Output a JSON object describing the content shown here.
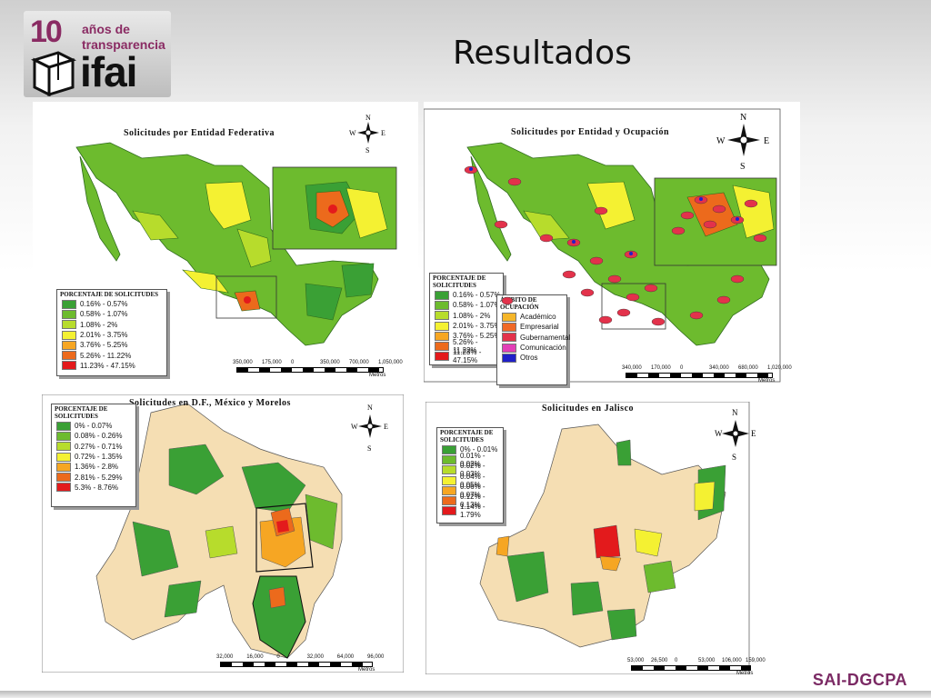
{
  "slide": {
    "title": "Resultados",
    "footer": "SAI-DGCPA"
  },
  "logo": {
    "number": "10",
    "line1": "años de",
    "line2": "transparencia",
    "brand": "ifai"
  },
  "compass": {
    "n": "N",
    "s": "S",
    "e": "E",
    "w": "W"
  },
  "maps": [
    {
      "title": "Solicitudes por Entidad Federativa",
      "legend_title": "Porcentaje de solicitudes",
      "legend": [
        {
          "label": "0.16% - 0.57%",
          "color": "#3aa035"
        },
        {
          "label": "0.58% - 1.07%",
          "color": "#6dbb2e"
        },
        {
          "label": "1.08% - 2%",
          "color": "#b7dc2c"
        },
        {
          "label": "2.01% - 3.75%",
          "color": "#f4f132"
        },
        {
          "label": "3.76% - 5.25%",
          "color": "#f6a623"
        },
        {
          "label": "5.26% - 11.22%",
          "color": "#ec6a1c"
        },
        {
          "label": "11.23% - 47.15%",
          "color": "#e31a1c"
        }
      ],
      "scale": [
        "350,000",
        "175,000",
        "0",
        "350,000",
        "700,000",
        "1,050,000"
      ],
      "scale_unit": "Metros"
    },
    {
      "title": "Solicitudes por Entidad y Ocupación",
      "legend_title": "Porcentaje de solicitudes",
      "legend": [
        {
          "label": "0.16% - 0.57%",
          "color": "#3aa035"
        },
        {
          "label": "0.58% - 1.07%",
          "color": "#6dbb2e"
        },
        {
          "label": "1.08% - 2%",
          "color": "#b7dc2c"
        },
        {
          "label": "2.01% - 3.75%",
          "color": "#f4f132"
        },
        {
          "label": "3.76% - 5.25%",
          "color": "#f6a623"
        },
        {
          "label": "5.26% - 11.22%",
          "color": "#ec6a1c"
        },
        {
          "label": "11.23% - 47.15%",
          "color": "#e31a1c"
        }
      ],
      "occupation_title": "Ámbito de ocupación",
      "occupations": [
        {
          "label": "Académico",
          "color": "#f5b62a"
        },
        {
          "label": "Empresarial",
          "color": "#f06a28"
        },
        {
          "label": "Gubernamental",
          "color": "#e3324b"
        },
        {
          "label": "Comunicación",
          "color": "#e33fb7"
        },
        {
          "label": "Otros",
          "color": "#2020c8"
        }
      ],
      "scale": [
        "340,000",
        "170,000",
        "0",
        "340,000",
        "680,000",
        "1,020,000"
      ],
      "scale_unit": "Metros"
    },
    {
      "title": "Solicitudes en D.F., México y Morelos",
      "legend_title": "Porcentaje de solicitudes",
      "legend": [
        {
          "label": "0% - 0.07%",
          "color": "#3aa035"
        },
        {
          "label": "0.08% - 0.26%",
          "color": "#6dbb2e"
        },
        {
          "label": "0.27% - 0.71%",
          "color": "#b7dc2c"
        },
        {
          "label": "0.72% - 1.35%",
          "color": "#f4f132"
        },
        {
          "label": "1.36% - 2.8%",
          "color": "#f6a623"
        },
        {
          "label": "2.81% - 5.29%",
          "color": "#ec6a1c"
        },
        {
          "label": "5.3% - 8.76%",
          "color": "#e31a1c"
        }
      ],
      "scale": [
        "32,000",
        "16,000",
        "0",
        "32,000",
        "64,000",
        "96,000"
      ],
      "scale_unit": "Metros"
    },
    {
      "title": "Solicitudes en Jalisco",
      "legend_title": "Porcentaje de solicitudes",
      "legend": [
        {
          "label": "0% - 0.01%",
          "color": "#3aa035"
        },
        {
          "label": "0.01% - 0.02%",
          "color": "#6dbb2e"
        },
        {
          "label": "0.02% - 0.03%",
          "color": "#b7dc2c"
        },
        {
          "label": "0.04% - 0.05%",
          "color": "#f4f132"
        },
        {
          "label": "0.06% - 0.07%",
          "color": "#f6a623"
        },
        {
          "label": "0.12% - 0.13%",
          "color": "#ec6a1c"
        },
        {
          "label": "1.14% - 1.79%",
          "color": "#e31a1c"
        }
      ],
      "scale": [
        "53,000",
        "26,500",
        "0",
        "53,000",
        "106,000",
        "159,000"
      ],
      "scale_unit": "Metros"
    }
  ]
}
